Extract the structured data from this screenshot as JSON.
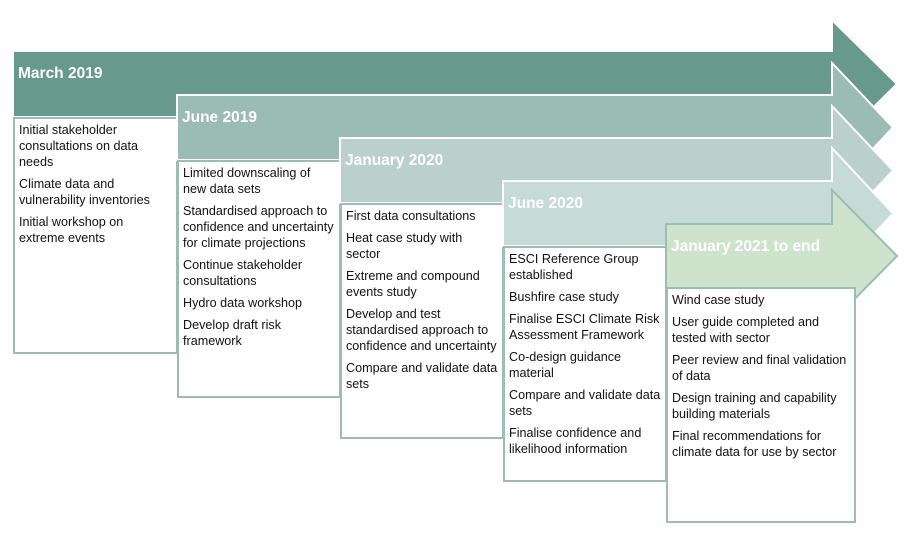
{
  "colors": {
    "border": "#9dbdb2",
    "stages": [
      "#679a8a",
      "#9bbcb3",
      "#b9d1ca",
      "#c6dbd5",
      "#cde3cb"
    ]
  },
  "stages": [
    {
      "title": "March 2019",
      "items": [
        "Initial stakeholder consultations on data needs",
        "Climate data and vulnerability inventories",
        "Initial workshop on extreme events"
      ]
    },
    {
      "title": "June 2019",
      "items": [
        "Limited downscaling of new data sets",
        "Standardised approach to confidence and uncertainty for climate projections",
        "Continue stakeholder consultations",
        "Hydro data workshop",
        "Develop draft risk framework"
      ]
    },
    {
      "title": "January 2020",
      "items": [
        "First data consultations",
        "Heat case study with sector",
        "Extreme and compound events study",
        "Develop and test standardised approach to confidence and uncertainty",
        "Compare and validate data sets"
      ]
    },
    {
      "title": "June 2020",
      "items": [
        "ESCI Reference Group established",
        "Bushfire case study",
        "Finalise ESCI Climate Risk Assessment Framework",
        "Co-design guidance material",
        "Compare and validate data sets",
        "Finalise confidence and likelihood information"
      ]
    },
    {
      "title": "January 2021 to end",
      "items": [
        "Wind case study",
        "User guide completed and tested with sector",
        "Peer review and final validation of data",
        "Design training and capability building materials",
        "Final recommendations for climate data for use by sector"
      ]
    }
  ]
}
